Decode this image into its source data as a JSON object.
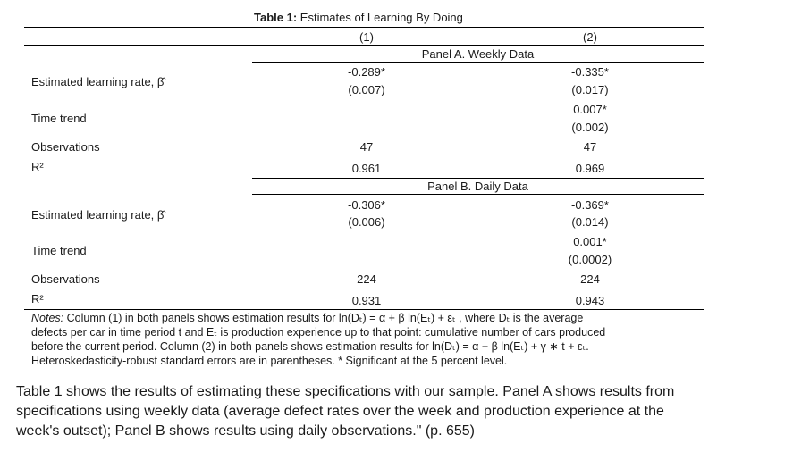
{
  "table": {
    "caption_label": "Table 1:",
    "caption_title": "Estimates of Learning By Doing",
    "col1": "(1)",
    "col2": "(2)",
    "panel_a": {
      "title": "Panel A. Weekly Data",
      "lr_label": "Estimated learning rate, β̂",
      "lr_c1": "-0.289*",
      "lr_c1_se": "(0.007)",
      "lr_c2": "-0.335*",
      "lr_c2_se": "(0.017)",
      "tt_label": "Time trend",
      "tt_c2": "0.007*",
      "tt_c2_se": "(0.002)",
      "obs_label": "Observations",
      "obs_c1": "47",
      "obs_c2": "47",
      "r2_label": "R²",
      "r2_c1": "0.961",
      "r2_c2": "0.969"
    },
    "panel_b": {
      "title": "Panel B. Daily Data",
      "lr_label": "Estimated learning rate, β̂",
      "lr_c1": "-0.306*",
      "lr_c1_se": "(0.006)",
      "lr_c2": "-0.369*",
      "lr_c2_se": "(0.014)",
      "tt_label": "Time trend",
      "tt_c2": "0.001*",
      "tt_c2_se": "(0.0002)",
      "obs_label": "Observations",
      "obs_c1": "224",
      "obs_c2": "224",
      "r2_label": "R²",
      "r2_c1": "0.931",
      "r2_c2": "0.943"
    },
    "notes": {
      "label": "Notes:",
      "line1": "Column (1) in both panels shows estimation results for ln(Dₜ) = α + β ln(Eₜ) + εₜ , where Dₜ is the average",
      "line2": "defects per car in time period t and Eₜ is production experience up to that point: cumulative number of cars produced",
      "line3": "before the current period. Column (2) in both panels shows estimation results for ln(Dₜ) = α + β ln(Eₜ) + γ ∗ t + εₜ.",
      "line4": "Heteroskedasticity-robust standard errors are in parentheses.  * Significant at the 5 percent level."
    }
  },
  "body": {
    "line1": "Table 1 shows the results of estimating these specifications with our sample. Panel A shows results from",
    "line2": "specifications using weekly data (average defect rates over the week and production experience at the",
    "line3": "week's outset); Panel B shows results using daily observations.\" (p. 655)"
  }
}
